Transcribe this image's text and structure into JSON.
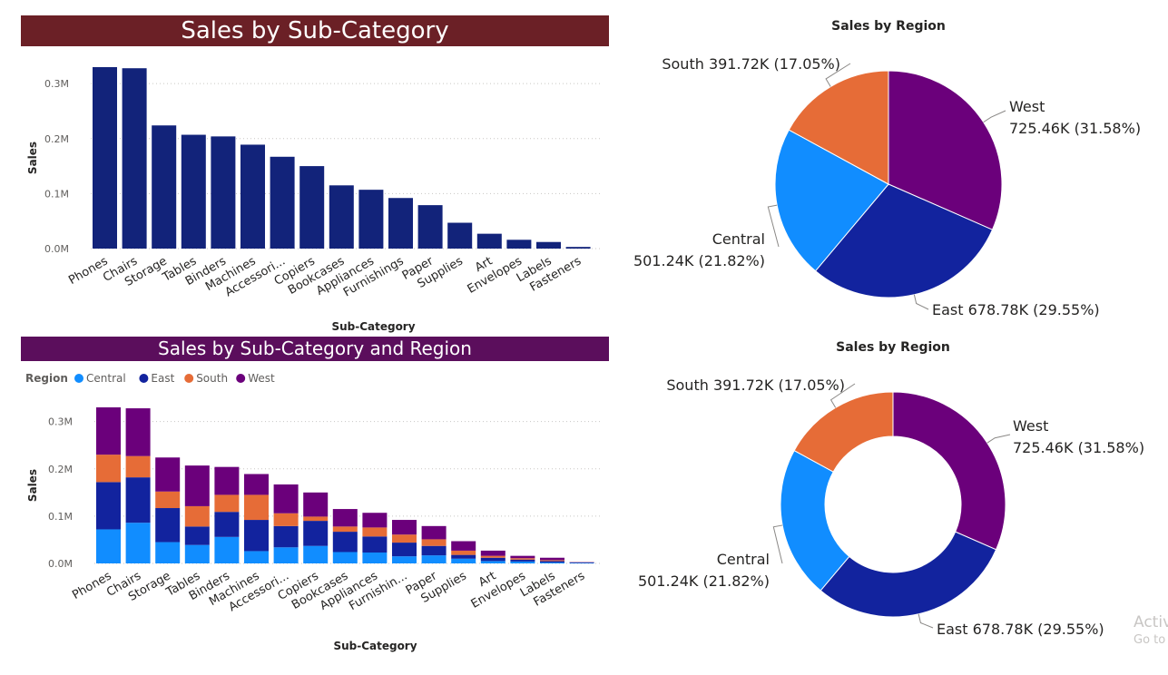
{
  "banners": {
    "top": "Sales by Sub-Category",
    "bottom": "Sales by Sub-Category and Region"
  },
  "colors": {
    "banner_top": "#6b2026",
    "banner_bottom": "#5b0e5c",
    "bar": "#12237a",
    "Central": "#118dff",
    "East": "#12239e",
    "South": "#e66c37",
    "West": "#6b007b"
  },
  "chart_data": [
    {
      "type": "bar",
      "title": "",
      "xlabel": "Sub-Category",
      "ylabel": "Sales",
      "ylim": [
        0,
        0.33
      ],
      "yunit": "M",
      "yticks": [
        "0.0M",
        "0.1M",
        "0.2M",
        "0.3M"
      ],
      "grid": true,
      "categories": [
        "Phones",
        "Chairs",
        "Storage",
        "Tables",
        "Binders",
        "Machines",
        "Accessori...",
        "Copiers",
        "Bookcases",
        "Appliances",
        "Furnishings",
        "Paper",
        "Supplies",
        "Art",
        "Envelopes",
        "Labels",
        "Fasteners"
      ],
      "values": [
        0.33,
        0.328,
        0.224,
        0.207,
        0.204,
        0.189,
        0.167,
        0.15,
        0.115,
        0.107,
        0.092,
        0.079,
        0.047,
        0.027,
        0.016,
        0.012,
        0.003
      ]
    },
    {
      "type": "bar",
      "stacked": true,
      "title": "",
      "xlabel": "Sub-Category",
      "ylabel": "Sales",
      "ylim": [
        0,
        0.33
      ],
      "yunit": "M",
      "yticks": [
        "0.0M",
        "0.1M",
        "0.2M",
        "0.3M"
      ],
      "grid": true,
      "legend_title": "Region",
      "legend_position": "top-left",
      "categories": [
        "Phones",
        "Chairs",
        "Storage",
        "Tables",
        "Binders",
        "Machines",
        "Accessori...",
        "Copiers",
        "Bookcases",
        "Appliances",
        "Furnishin...",
        "Paper",
        "Supplies",
        "Art",
        "Envelopes",
        "Labels",
        "Fasteners"
      ],
      "series": [
        {
          "name": "Central",
          "values": [
            0.072,
            0.086,
            0.045,
            0.039,
            0.056,
            0.026,
            0.034,
            0.037,
            0.024,
            0.023,
            0.015,
            0.017,
            0.01,
            0.005,
            0.004,
            0.002,
            0.001
          ]
        },
        {
          "name": "East",
          "values": [
            0.1,
            0.096,
            0.072,
            0.039,
            0.053,
            0.066,
            0.045,
            0.053,
            0.043,
            0.034,
            0.029,
            0.02,
            0.008,
            0.007,
            0.004,
            0.003,
            0.001
          ]
        },
        {
          "name": "South",
          "values": [
            0.058,
            0.045,
            0.035,
            0.043,
            0.036,
            0.053,
            0.027,
            0.009,
            0.011,
            0.019,
            0.017,
            0.014,
            0.009,
            0.004,
            0.003,
            0.002,
            0.0005
          ]
        },
        {
          "name": "West",
          "values": [
            0.1,
            0.101,
            0.072,
            0.086,
            0.059,
            0.044,
            0.061,
            0.051,
            0.037,
            0.031,
            0.031,
            0.028,
            0.02,
            0.011,
            0.005,
            0.005,
            0.0005
          ]
        }
      ]
    },
    {
      "type": "pie",
      "title": "Sales by Region",
      "slices": [
        {
          "name": "West",
          "value": 725.46,
          "pct": 31.58,
          "label1": "West",
          "label2": "725.46K (31.58%)"
        },
        {
          "name": "East",
          "value": 678.78,
          "pct": 29.55,
          "label1": "East 678.78K (29.55%)",
          "label2": ""
        },
        {
          "name": "Central",
          "value": 501.24,
          "pct": 21.82,
          "label1": "Central",
          "label2": "501.24K (21.82%)"
        },
        {
          "name": "South",
          "value": 391.72,
          "pct": 17.05,
          "label1": "South 391.72K (17.05%)",
          "label2": ""
        }
      ]
    },
    {
      "type": "pie",
      "donut": true,
      "title": "Sales by Region",
      "slices": [
        {
          "name": "West",
          "value": 725.46,
          "pct": 31.58,
          "label1": "West",
          "label2": "725.46K (31.58%)"
        },
        {
          "name": "East",
          "value": 678.78,
          "pct": 29.55,
          "label1": "East 678.78K (29.55%)",
          "label2": ""
        },
        {
          "name": "Central",
          "value": 501.24,
          "pct": 21.82,
          "label1": "Central",
          "label2": "501.24K (21.82%)"
        },
        {
          "name": "South",
          "value": 391.72,
          "pct": 17.05,
          "label1": "South 391.72K (17.05%)",
          "label2": ""
        }
      ]
    }
  ],
  "watermark": {
    "line1": "Activ",
    "line2": "Go to"
  }
}
